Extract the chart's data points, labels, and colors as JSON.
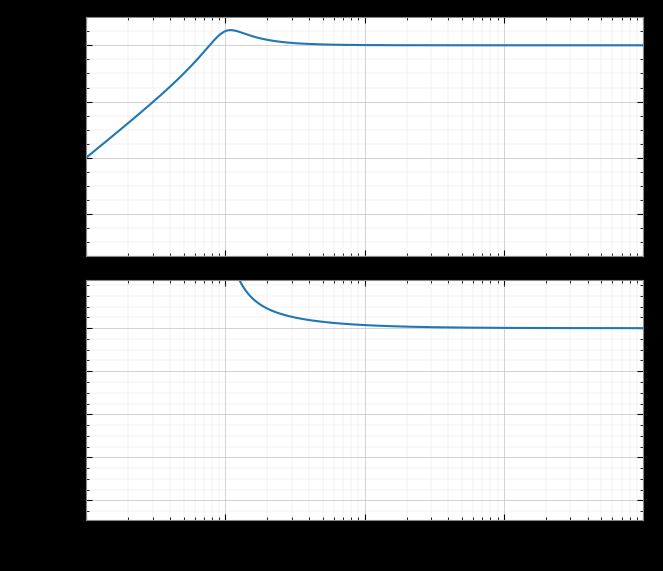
{
  "line_color": "#1f77b4",
  "line_width": 1.5,
  "axes_bg_color": "#ffffff",
  "fig_bg_color": "#000000",
  "grid_major_color": "#c0c0c0",
  "grid_minor_color": "#e0e0e0",
  "freq_min": 0.1,
  "freq_max": 1000,
  "mag_ylim_min": -75,
  "mag_ylim_max": 10,
  "phase_ylim_min": -200,
  "phase_ylim_max": 50,
  "natural_freq": 1.0,
  "damping": 0.28,
  "mag_yticks": [
    -60,
    -40,
    -20,
    0
  ],
  "phase_yticks": [
    -180,
    -135,
    -90,
    -45,
    0
  ]
}
